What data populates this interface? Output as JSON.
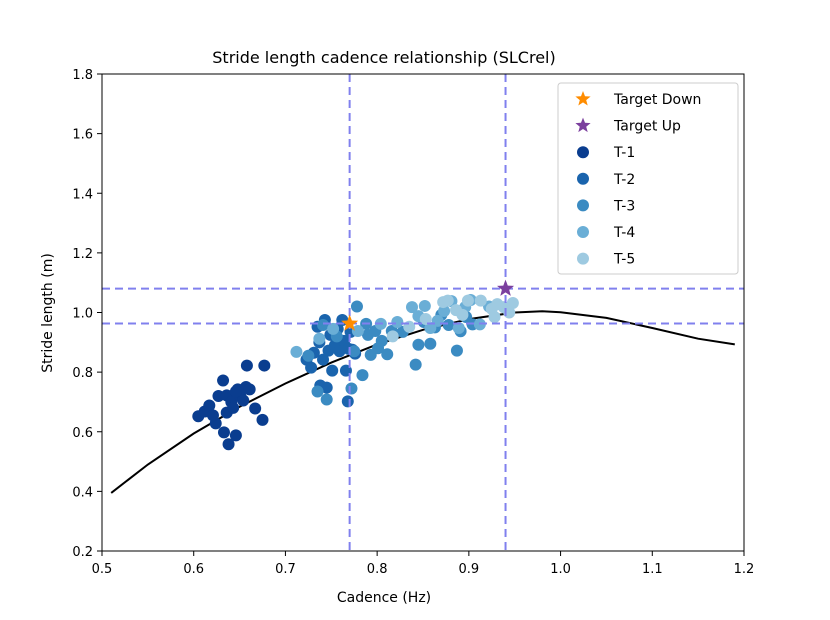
{
  "chart_data": {
    "type": "scatter",
    "title": "Stride length cadence relationship (SLCrel)",
    "xlabel": "Cadence (Hz)",
    "ylabel": "Stride length (m)",
    "xlim": [
      0.5,
      1.2
    ],
    "ylim": [
      0.2,
      1.8
    ],
    "xticks": [
      "0.5",
      "0.6",
      "0.7",
      "0.8",
      "0.9",
      "1.0",
      "1.1",
      "1.2"
    ],
    "yticks": [
      "0.2",
      "0.4",
      "0.6",
      "0.8",
      "1.0",
      "1.2",
      "1.4",
      "1.6",
      "1.8"
    ],
    "grid": false,
    "legend_position": "upper right",
    "reference_lines": {
      "vertical": [
        0.77,
        0.94
      ],
      "horizontal": [
        0.963,
        1.08
      ],
      "color": "#8080ee",
      "style": "dashed"
    },
    "fit_curve": {
      "color": "#000000",
      "x": [
        0.51,
        0.55,
        0.6,
        0.65,
        0.7,
        0.75,
        0.8,
        0.85,
        0.9,
        0.95,
        0.98,
        1.0,
        1.05,
        1.1,
        1.15,
        1.19
      ],
      "y": [
        0.395,
        0.49,
        0.594,
        0.684,
        0.762,
        0.832,
        0.893,
        0.942,
        0.978,
        1.0,
        1.004,
        1.001,
        0.982,
        0.948,
        0.912,
        0.893
      ]
    },
    "targets": [
      {
        "name": "Target Down",
        "x": 0.77,
        "y": 0.963,
        "color": "#ff8c00"
      },
      {
        "name": "Target Up",
        "x": 0.94,
        "y": 1.08,
        "color": "#7b3f9e"
      }
    ],
    "series": [
      {
        "name": "T-1",
        "color": "#0a3d8f",
        "points": [
          [
            0.605,
            0.652
          ],
          [
            0.612,
            0.668
          ],
          [
            0.617,
            0.688
          ],
          [
            0.624,
            0.628
          ],
          [
            0.627,
            0.72
          ],
          [
            0.632,
            0.772
          ],
          [
            0.633,
            0.598
          ],
          [
            0.636,
            0.722
          ],
          [
            0.636,
            0.664
          ],
          [
            0.638,
            0.558
          ],
          [
            0.641,
            0.7
          ],
          [
            0.643,
            0.68
          ],
          [
            0.646,
            0.588
          ],
          [
            0.648,
            0.742
          ],
          [
            0.651,
            0.718
          ],
          [
            0.654,
            0.705
          ],
          [
            0.657,
            0.75
          ],
          [
            0.658,
            0.822
          ],
          [
            0.661,
            0.742
          ],
          [
            0.667,
            0.678
          ],
          [
            0.675,
            0.64
          ],
          [
            0.677,
            0.822
          ],
          [
            0.621,
            0.655
          ],
          [
            0.646,
            0.735
          ]
        ]
      },
      {
        "name": "T-2",
        "color": "#1a64ad",
        "points": [
          [
            0.723,
            0.842
          ],
          [
            0.728,
            0.815
          ],
          [
            0.731,
            0.865
          ],
          [
            0.735,
            0.952
          ],
          [
            0.737,
            0.9
          ],
          [
            0.741,
            0.842
          ],
          [
            0.743,
            0.975
          ],
          [
            0.747,
            0.872
          ],
          [
            0.749,
            0.925
          ],
          [
            0.751,
            0.805
          ],
          [
            0.754,
            0.89
          ],
          [
            0.757,
            0.945
          ],
          [
            0.759,
            0.87
          ],
          [
            0.762,
            0.975
          ],
          [
            0.764,
            0.905
          ],
          [
            0.766,
            0.805
          ],
          [
            0.769,
            0.878
          ],
          [
            0.771,
            0.935
          ],
          [
            0.773,
            0.875
          ],
          [
            0.776,
            0.862
          ],
          [
            0.768,
            0.702
          ],
          [
            0.745,
            0.748
          ],
          [
            0.738,
            0.755
          ]
        ]
      },
      {
        "name": "T-3",
        "color": "#3b8bc2",
        "points": [
          [
            0.725,
            0.855
          ],
          [
            0.735,
            0.735
          ],
          [
            0.741,
            0.958
          ],
          [
            0.745,
            0.708
          ],
          [
            0.756,
            0.92
          ],
          [
            0.772,
            0.745
          ],
          [
            0.775,
            0.87
          ],
          [
            0.778,
            1.02
          ],
          [
            0.784,
            0.79
          ],
          [
            0.788,
            0.962
          ],
          [
            0.79,
            0.925
          ],
          [
            0.793,
            0.858
          ],
          [
            0.798,
            0.938
          ],
          [
            0.801,
            0.88
          ],
          [
            0.805,
            0.905
          ],
          [
            0.811,
            0.86
          ],
          [
            0.816,
            0.938
          ],
          [
            0.828,
            0.935
          ],
          [
            0.842,
            0.825
          ],
          [
            0.845,
            0.892
          ],
          [
            0.851,
            0.968
          ],
          [
            0.858,
            0.895
          ],
          [
            0.863,
            0.95
          ],
          [
            0.87,
            0.992
          ],
          [
            0.878,
            0.958
          ],
          [
            0.887,
            0.872
          ],
          [
            0.891,
            0.937
          ],
          [
            0.897,
            0.985
          ],
          [
            0.904,
            0.96
          ]
        ]
      },
      {
        "name": "T-4",
        "color": "#6aaed6",
        "points": [
          [
            0.712,
            0.868
          ],
          [
            0.737,
            0.912
          ],
          [
            0.752,
            0.945
          ],
          [
            0.779,
            0.938
          ],
          [
            0.804,
            0.962
          ],
          [
            0.822,
            0.968
          ],
          [
            0.838,
            1.018
          ],
          [
            0.845,
            0.988
          ],
          [
            0.852,
            1.022
          ],
          [
            0.858,
            0.948
          ],
          [
            0.866,
            0.972
          ],
          [
            0.873,
            1.005
          ],
          [
            0.881,
            1.038
          ],
          [
            0.889,
            0.948
          ],
          [
            0.896,
            1.018
          ],
          [
            0.902,
            1.042
          ],
          [
            0.912,
            0.96
          ],
          [
            0.922,
            1.02
          ]
        ]
      },
      {
        "name": "T-5",
        "color": "#9ecae1",
        "points": [
          [
            0.817,
            0.92
          ],
          [
            0.835,
            0.952
          ],
          [
            0.853,
            0.978
          ],
          [
            0.872,
            1.035
          ],
          [
            0.877,
            1.04
          ],
          [
            0.886,
            1.008
          ],
          [
            0.893,
            0.992
          ],
          [
            0.899,
            1.04
          ],
          [
            0.913,
            1.04
          ],
          [
            0.925,
            1.012
          ],
          [
            0.931,
            1.028
          ],
          [
            0.938,
            1.018
          ],
          [
            0.948,
            1.032
          ],
          [
            0.944,
            1.0
          ],
          [
            0.928,
            0.985
          ]
        ]
      }
    ]
  }
}
